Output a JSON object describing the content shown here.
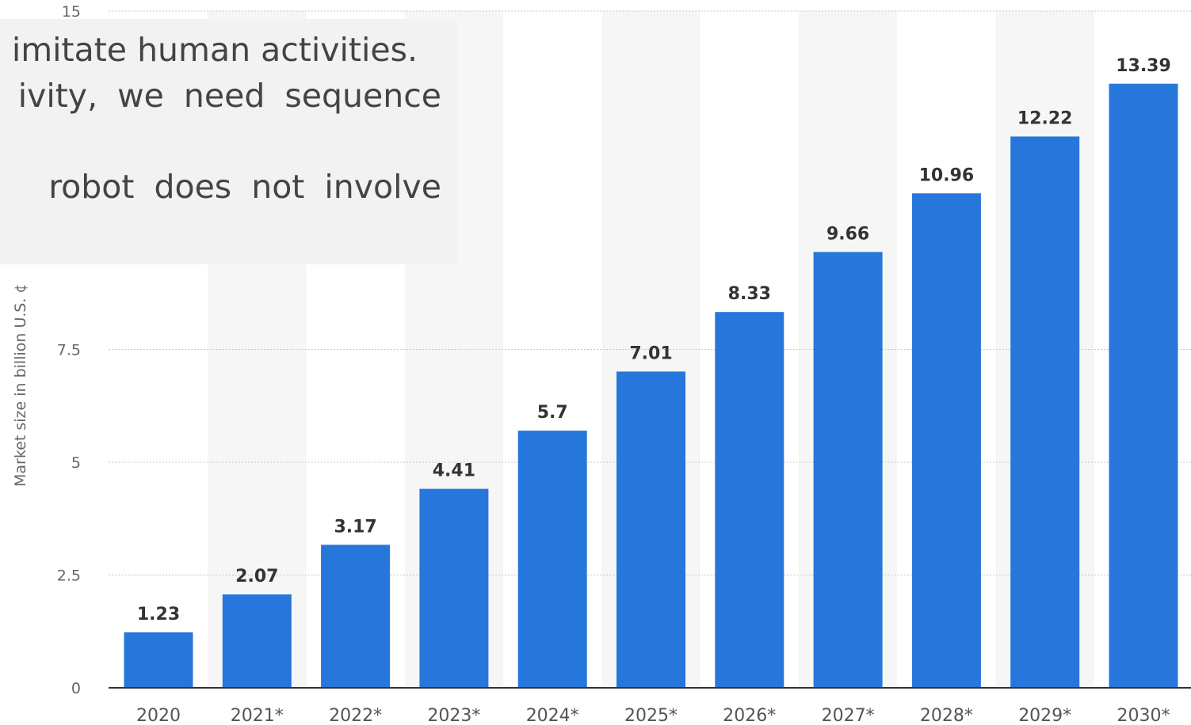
{
  "colors": {
    "bar": "#2776db",
    "band": "#f6f6f6",
    "grid": "#c8c8c8",
    "axis": "#333333"
  },
  "overlay": {
    "lines": [
      "imitate human activities.",
      "ivity, we need sequence",
      "robot does not involve"
    ]
  },
  "chart_data": {
    "type": "bar",
    "title": "",
    "xlabel": "",
    "ylabel": "Market size in billion U.S. ¢",
    "ylim": [
      0,
      15
    ],
    "yticks": [
      "0",
      "2.5",
      "5",
      "7.5",
      "15"
    ],
    "grid": true,
    "categories": [
      "2020",
      "2021*",
      "2022*",
      "2023*",
      "2024*",
      "2025*",
      "2026*",
      "2027*",
      "2028*",
      "2029*",
      "2030*"
    ],
    "values": [
      1.23,
      2.07,
      3.17,
      4.41,
      5.7,
      7.01,
      8.33,
      9.66,
      10.96,
      12.22,
      13.39
    ],
    "data_labels": [
      "1.23",
      "2.07",
      "3.17",
      "4.41",
      "5.7",
      "7.01",
      "8.33",
      "9.66",
      "10.96",
      "12.22",
      "13.39"
    ]
  }
}
